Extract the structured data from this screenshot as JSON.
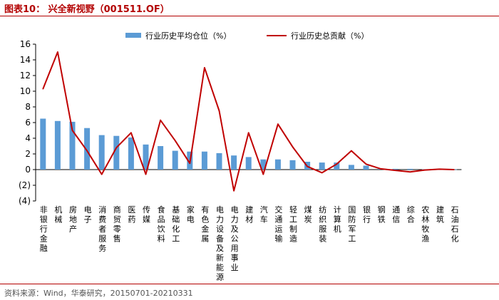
{
  "header": {
    "title": "图表10：  兴全新视野（001511.OF）"
  },
  "footer": {
    "source": "资料来源：Wind，华泰研究，20150701-20210331"
  },
  "colors": {
    "bar": "#5b9bd5",
    "line": "#c00000",
    "title": "#b30000"
  },
  "chart_data": {
    "type": "bar",
    "categories": [
      "非银行金融",
      "机械",
      "房地产",
      "电子",
      "消费者服务",
      "商贸零售",
      "医药",
      "传媒",
      "食品饮料",
      "基础化工",
      "家电",
      "有色金属",
      "电力设备及新能源",
      "电力及公用事业",
      "建材",
      "汽车",
      "交通运输",
      "轻工制造",
      "煤炭",
      "纺织服装",
      "计算机",
      "国防军工",
      "银行",
      "钢铁",
      "通信",
      "综合",
      "农林牧渔",
      "建筑",
      "石油石化"
    ],
    "series": [
      {
        "name": "行业历史平均仓位（%）",
        "type": "bar",
        "values": [
          6.5,
          6.2,
          6.1,
          5.3,
          4.4,
          4.3,
          4.1,
          3.2,
          3.0,
          2.4,
          2.3,
          2.3,
          2.1,
          1.8,
          1.6,
          1.3,
          1.3,
          1.2,
          1.0,
          0.9,
          0.9,
          0.6,
          0.5,
          0.1,
          0.1,
          0.1,
          0.05,
          0.05,
          0.03
        ]
      },
      {
        "name": "行业历史总贡献（%）",
        "type": "line",
        "values": [
          10.3,
          15.0,
          5.0,
          2.4,
          -0.6,
          2.8,
          4.7,
          -0.6,
          6.3,
          3.7,
          0.8,
          13.0,
          7.5,
          -2.7,
          4.7,
          -0.6,
          5.8,
          2.9,
          0.4,
          -0.4,
          0.7,
          2.4,
          0.7,
          0.1,
          -0.1,
          -0.3,
          -0.05,
          0.05,
          0.0
        ]
      }
    ],
    "yticks": [
      "16",
      "14",
      "12",
      "10",
      "8",
      "6",
      "4",
      "2",
      "0",
      "(2)",
      "(4)"
    ],
    "ylim": [
      -4,
      16
    ],
    "legend_position": "top"
  }
}
